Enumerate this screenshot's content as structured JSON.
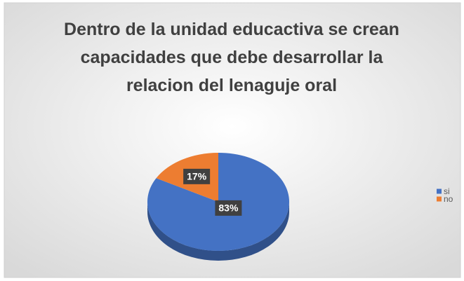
{
  "chart_data": {
    "type": "pie",
    "title": "Dentro de la unidad educactiva se crean capacidades que debe desarrollar la relacion del lenaguje oral",
    "categories": [
      "si",
      "no"
    ],
    "values": [
      83,
      17
    ],
    "value_labels": [
      "83%",
      "17%"
    ],
    "colors": [
      "#4472c4",
      "#ed7d31"
    ],
    "legend": "right"
  }
}
